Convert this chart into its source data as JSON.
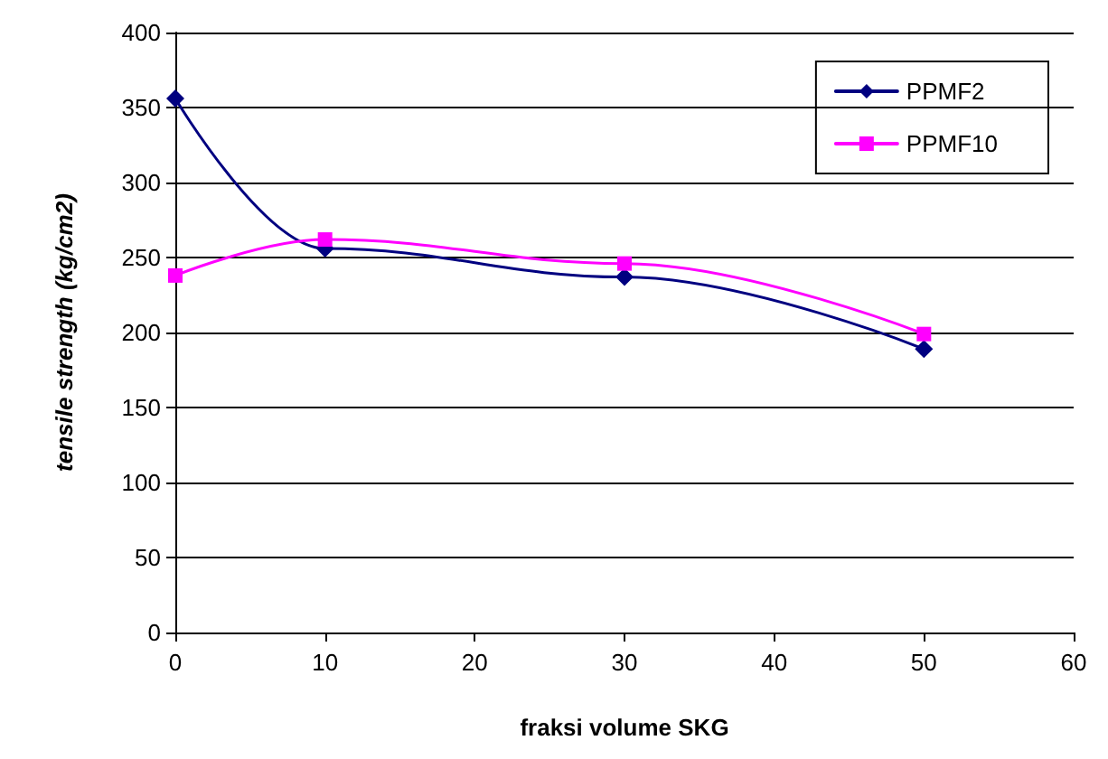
{
  "chart_data": {
    "type": "line",
    "xlabel": "fraksi volume SKG",
    "ylabel": "tensile strength (kg/cm2)",
    "x": [
      0,
      10,
      30,
      50
    ],
    "series": [
      {
        "name": "PPMF2",
        "color": "#000080",
        "values": [
          356,
          256,
          237,
          189
        ],
        "marker": "diamond"
      },
      {
        "name": "PPMF10",
        "color": "#ff00ff",
        "values": [
          238,
          262,
          246,
          199
        ],
        "marker": "square"
      }
    ],
    "xlim": [
      0,
      60
    ],
    "xticks": [
      0,
      10,
      20,
      30,
      40,
      50,
      60
    ],
    "ylim": [
      0,
      400
    ],
    "yticks": [
      0,
      50,
      100,
      150,
      200,
      250,
      300,
      350,
      400
    ],
    "grid": "y",
    "legend": "top right",
    "line_style": "solid"
  }
}
